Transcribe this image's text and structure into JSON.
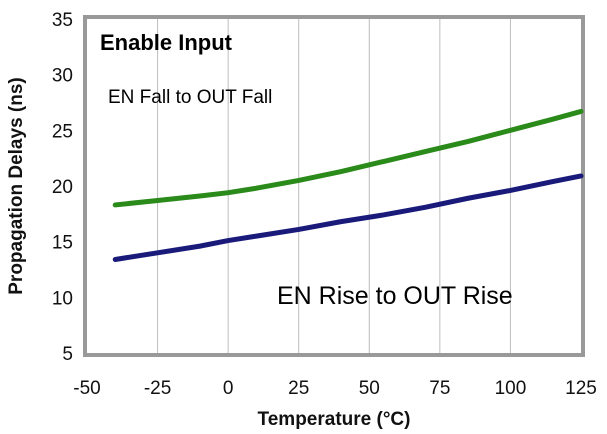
{
  "chart_data": {
    "type": "line",
    "title": "Enable Input",
    "xlabel": "Temperature (°C)",
    "ylabel": "Propagation Delays (ns)",
    "xlim": [
      -50,
      125
    ],
    "ylim": [
      5,
      35
    ],
    "x_ticks": [
      -50,
      -25,
      0,
      25,
      50,
      75,
      100,
      125
    ],
    "y_ticks": [
      5,
      10,
      15,
      20,
      25,
      30,
      35
    ],
    "grid": "vertical",
    "annotations": [
      "EN Fall to OUT Fall",
      "EN Rise to OUT Rise"
    ],
    "series": [
      {
        "name": "EN Fall to OUT Fall",
        "color": "#2a8a1a",
        "x": [
          -40,
          -25,
          -10,
          0,
          10,
          25,
          40,
          55,
          70,
          85,
          100,
          115,
          125
        ],
        "y": [
          18.3,
          18.7,
          19.1,
          19.4,
          19.8,
          20.5,
          21.3,
          22.2,
          23.1,
          24.0,
          25.0,
          26.0,
          26.7
        ]
      },
      {
        "name": "EN Rise to OUT Rise",
        "color": "#1a1a7a",
        "x": [
          -40,
          -25,
          -10,
          0,
          10,
          25,
          40,
          55,
          70,
          85,
          100,
          115,
          125
        ],
        "y": [
          13.4,
          14.0,
          14.6,
          15.1,
          15.5,
          16.1,
          16.8,
          17.4,
          18.1,
          18.9,
          19.6,
          20.4,
          20.9
        ]
      }
    ]
  }
}
